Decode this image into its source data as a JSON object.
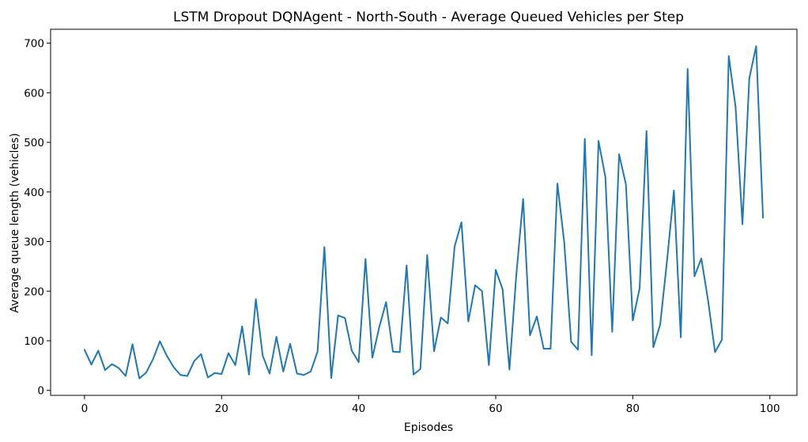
{
  "chart_data": {
    "type": "line",
    "title": "LSTM Dropout DQNAgent - North-South - Average Queued Vehicles per Step",
    "xlabel": "Episodes",
    "ylabel": "Average queue length (vehicles)",
    "xlim": [
      -4.95,
      103.95
    ],
    "ylim": [
      -10,
      728
    ],
    "xticks": [
      0,
      20,
      40,
      60,
      80,
      100
    ],
    "yticks": [
      0,
      100,
      200,
      300,
      400,
      500,
      600,
      700
    ],
    "grid": false,
    "legend": "none",
    "colors": {
      "line": "#1f77b4"
    },
    "series": [
      {
        "values": [
          82,
          52,
          80,
          41,
          53,
          45,
          29,
          93,
          24,
          36,
          63,
          99,
          70,
          47,
          31,
          29,
          59,
          73,
          26,
          35,
          33,
          75,
          51,
          129,
          32,
          184,
          70,
          34,
          108,
          38,
          94,
          34,
          31,
          38,
          78,
          289,
          25,
          151,
          146,
          80,
          57,
          265,
          66,
          127,
          178,
          78,
          77,
          252,
          32,
          43,
          273,
          79,
          147,
          135,
          290,
          339,
          139,
          212,
          200,
          51,
          243,
          204,
          42,
          232,
          386,
          111,
          149,
          84,
          84,
          417,
          298,
          98,
          82,
          507,
          71,
          503,
          430,
          118,
          476,
          415,
          141,
          206,
          523,
          87,
          133,
          262,
          403,
          107,
          648,
          230,
          266,
          180,
          77,
          102,
          674,
          571,
          335,
          629,
          694,
          348
        ]
      }
    ]
  }
}
